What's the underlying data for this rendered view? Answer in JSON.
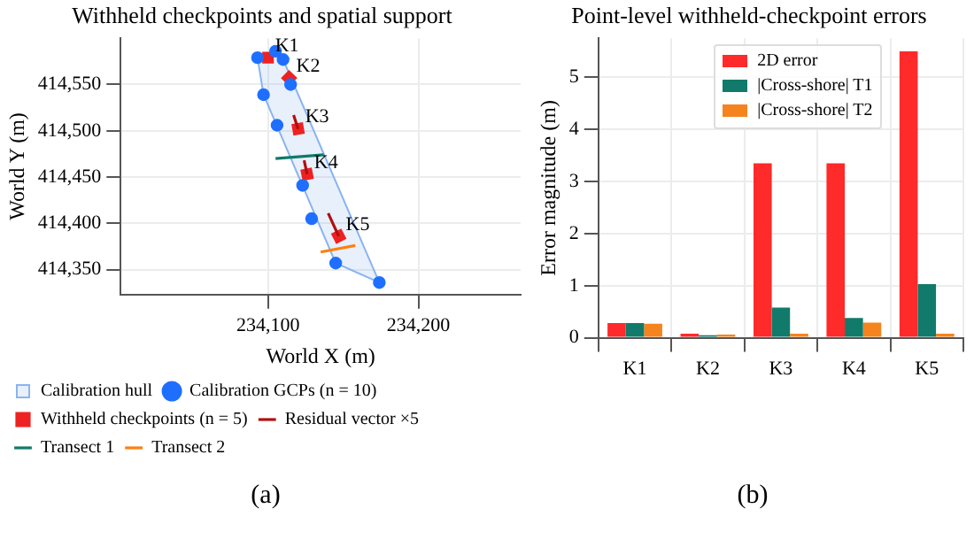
{
  "chart_data": [
    {
      "type": "scatter",
      "title": "Withheld checkpoints and spatial support",
      "xlabel": "World X (m)",
      "ylabel": "World Y (m)",
      "xlim": [
        234002,
        234268
      ],
      "ylim": [
        414323,
        414600
      ],
      "xticks": [
        {
          "value": 234100,
          "label": "234,100"
        },
        {
          "value": 234200,
          "label": "234,200"
        }
      ],
      "yticks": [
        {
          "value": 414350,
          "label": "414,350"
        },
        {
          "value": 414400,
          "label": "414,400"
        },
        {
          "value": 414450,
          "label": "414,450"
        },
        {
          "value": 414500,
          "label": "414,500"
        },
        {
          "value": 414550,
          "label": "414,550"
        }
      ],
      "grid": true,
      "legend": "bottom",
      "series": [
        {
          "name": "Calibration hull",
          "type": "area",
          "color": "#8ab4f0",
          "x": [
            234093,
            234105,
            234110,
            234174,
            234145,
            234097,
            234093
          ],
          "values": [
            414579,
            414586,
            414577,
            414336,
            414357,
            414539,
            414579
          ],
          "marker": "none"
        },
        {
          "name": "Calibration GCPs (n = 10)",
          "type": "scatter",
          "color": "#1f6fff",
          "x": [
            234105,
            234093,
            234110,
            234115,
            234097,
            234106,
            234123,
            234129,
            234145,
            234174
          ],
          "values": [
            414586,
            414579,
            414577,
            414550,
            414539,
            414506,
            414441,
            414405,
            414357,
            414336
          ],
          "marker": "circle"
        },
        {
          "name": "Withheld checkpoints (n = 5)",
          "type": "scatter",
          "color": "#ee2222",
          "x": [
            234100,
            234114,
            234120,
            234126,
            234147
          ],
          "values": [
            414579,
            414557,
            414502,
            414453,
            414386
          ],
          "marker": "square"
        },
        {
          "name": "Residual vector ×5",
          "type": "line",
          "color": "#b01010",
          "x": [
            234120,
            234117,
            null,
            234126,
            234124,
            null,
            234147,
            234140
          ],
          "values": [
            414502,
            414517,
            null,
            414453,
            414468,
            null,
            414386,
            414411
          ],
          "marker": "none"
        },
        {
          "name": "Transect 1",
          "type": "line",
          "color": "#0f7a6a",
          "x": [
            234105,
            234137
          ],
          "values": [
            414470,
            414474
          ],
          "marker": "none"
        },
        {
          "name": "Transect 2",
          "type": "line",
          "color": "#ff7f0e",
          "x": [
            234135,
            234158
          ],
          "values": [
            414369,
            414376
          ],
          "marker": "none"
        }
      ],
      "annotations": [
        {
          "text": "K1",
          "x": 234100,
          "y": 414579
        },
        {
          "text": "K2",
          "x": 234114,
          "y": 414557
        },
        {
          "text": "K3",
          "x": 234120,
          "y": 414502
        },
        {
          "text": "K4",
          "x": 234126,
          "y": 414453
        },
        {
          "text": "K5",
          "x": 234147,
          "y": 414386
        },
        "(a)"
      ]
    },
    {
      "type": "bar",
      "title": "Point-level withheld-checkpoint errors",
      "ylabel": "Error magnitude (m)",
      "categories": [
        "K1",
        "K2",
        "K3",
        "K4",
        "K5"
      ],
      "ylim": [
        0,
        5.75
      ],
      "yticks": [
        0,
        1,
        2,
        3,
        4,
        5
      ],
      "grid": true,
      "legend": "top right",
      "series": [
        {
          "name": "2D error",
          "color": "#ff2a2a",
          "values": [
            0.28,
            0.08,
            3.35,
            3.35,
            5.5
          ]
        },
        {
          "name": "|Cross-shore| T1",
          "color": "#127a6a",
          "values": [
            0.28,
            0.05,
            0.58,
            0.38,
            1.03
          ]
        },
        {
          "name": "|Cross-shore| T2",
          "color": "#f5841f",
          "values": [
            0.27,
            0.06,
            0.08,
            0.29,
            0.08
          ]
        }
      ],
      "annotations": [
        "(b)"
      ]
    }
  ]
}
